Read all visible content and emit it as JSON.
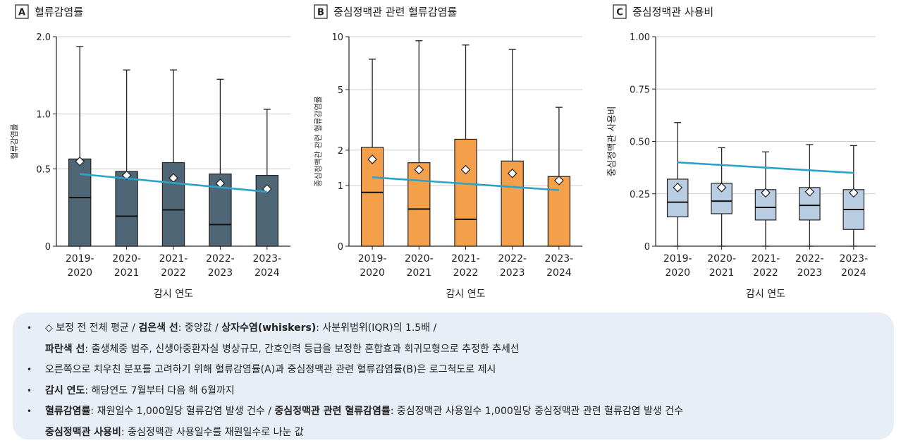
{
  "panels": [
    {
      "letter": "A",
      "title": "혈류감염률",
      "ylabel": "혈류감염률",
      "xlabel": "감시 연도"
    },
    {
      "letter": "B",
      "title": "중심정맥관 관련 혈류감염률",
      "ylabel": "중심정맥관 관련 혈류감염률",
      "xlabel": "감시 연도"
    },
    {
      "letter": "C",
      "title": "중심정맥관 사용비",
      "ylabel": "중심정맥관 사용비",
      "xlabel": "감시 연도"
    }
  ],
  "chart_data": [
    {
      "type": "box",
      "title": "혈류감염률",
      "xlabel": "감시 연도",
      "ylabel": "혈류감염률",
      "scale": "log1p",
      "yticks": [
        "0",
        "0.5",
        "1.0",
        "2.0"
      ],
      "ytick_values": [
        0,
        0.5,
        1.0,
        2.0
      ],
      "ylim": [
        0,
        2.0
      ],
      "categories": [
        [
          "2019-",
          "2020"
        ],
        [
          "2020-",
          "2021"
        ],
        [
          "2021-",
          "2022"
        ],
        [
          "2022-",
          "2023"
        ],
        [
          "2023-",
          "2024"
        ]
      ],
      "box_color": "#4f6676",
      "boxes": [
        {
          "whisker_low": 0,
          "q1": 0,
          "median": 0.29,
          "q3": 0.58,
          "whisker_high": 1.85,
          "mean": 0.56
        },
        {
          "whisker_low": 0,
          "q1": 0,
          "median": 0.17,
          "q3": 0.48,
          "whisker_high": 1.52,
          "mean": 0.45
        },
        {
          "whisker_low": 0,
          "q1": 0,
          "median": 0.21,
          "q3": 0.55,
          "whisker_high": 1.52,
          "mean": 0.43
        },
        {
          "whisker_low": 0,
          "q1": 0,
          "median": 0.12,
          "q3": 0.46,
          "whisker_high": 1.4,
          "mean": 0.39
        },
        {
          "whisker_low": 0,
          "q1": 0,
          "median": 0,
          "q3": 0.45,
          "whisker_high": 1.05,
          "mean": 0.35
        }
      ],
      "trend": [
        0.46,
        0.33
      ],
      "grid": true
    },
    {
      "type": "box",
      "title": "중심정맥관 관련 혈류감염률",
      "xlabel": "감시 연도",
      "ylabel": "중심정맥관 관련 혈류감염률",
      "scale": "log1p",
      "yticks": [
        "0",
        "1",
        "2",
        "5",
        "10"
      ],
      "ytick_values": [
        0,
        1,
        2,
        5,
        10
      ],
      "ylim": [
        0,
        10
      ],
      "categories": [
        [
          "2019-",
          "2020"
        ],
        [
          "2020-",
          "2021"
        ],
        [
          "2021-",
          "2022"
        ],
        [
          "2022-",
          "2023"
        ],
        [
          "2023-",
          "2024"
        ]
      ],
      "box_color": "#f4a04a",
      "boxes": [
        {
          "whisker_low": 0,
          "q1": 0,
          "median": 0.85,
          "q3": 2.1,
          "whisker_high": 7.5,
          "mean": 1.7
        },
        {
          "whisker_low": 0,
          "q1": 0,
          "median": 0.53,
          "q3": 1.6,
          "whisker_high": 9.5,
          "mean": 1.4
        },
        {
          "whisker_low": 0,
          "q1": 0,
          "median": 0.36,
          "q3": 2.4,
          "whisker_high": 9.0,
          "mean": 1.4
        },
        {
          "whisker_low": 0,
          "q1": 0,
          "median": 0,
          "q3": 1.65,
          "whisker_high": 8.5,
          "mean": 1.3
        },
        {
          "whisker_low": 0,
          "q1": 0,
          "median": 0,
          "q3": 1.22,
          "whisker_high": 3.9,
          "mean": 1.12
        }
      ],
      "trend": [
        1.2,
        0.9
      ],
      "grid": true
    },
    {
      "type": "box",
      "title": "중심정맥관 사용비",
      "xlabel": "감시 연도",
      "ylabel": "중심정맥관 사용비",
      "scale": "linear",
      "yticks": [
        "0",
        "0.25",
        "0.50",
        "0.75",
        "1.00"
      ],
      "ytick_values": [
        0,
        0.25,
        0.5,
        0.75,
        1.0
      ],
      "ylim": [
        0,
        1.0
      ],
      "categories": [
        [
          "2019-",
          "2020"
        ],
        [
          "2020-",
          "2021"
        ],
        [
          "2021-",
          "2022"
        ],
        [
          "2022-",
          "2023"
        ],
        [
          "2023-",
          "2024"
        ]
      ],
      "box_color": "#b9cde2",
      "boxes": [
        {
          "whisker_low": 0,
          "q1": 0.14,
          "median": 0.21,
          "q3": 0.32,
          "whisker_high": 0.59,
          "mean": 0.28
        },
        {
          "whisker_low": 0,
          "q1": 0.155,
          "median": 0.215,
          "q3": 0.3,
          "whisker_high": 0.47,
          "mean": 0.28
        },
        {
          "whisker_low": 0,
          "q1": 0.125,
          "median": 0.185,
          "q3": 0.27,
          "whisker_high": 0.45,
          "mean": 0.255
        },
        {
          "whisker_low": 0,
          "q1": 0.125,
          "median": 0.195,
          "q3": 0.28,
          "whisker_high": 0.485,
          "mean": 0.26
        },
        {
          "whisker_low": 0,
          "q1": 0.08,
          "median": 0.175,
          "q3": 0.27,
          "whisker_high": 0.48,
          "mean": 0.255
        }
      ],
      "trend": [
        0.4,
        0.35
      ],
      "grid": true
    }
  ],
  "styles": {
    "trend_color": "#2ba3c8",
    "legend_bg": "#e8eef6",
    "grid_color": "#cccccc"
  },
  "notes": [
    {
      "segments": [
        {
          "text": "◇ 보정 전 전체 평균 / ",
          "bold": false
        },
        {
          "text": "검은색 선",
          "bold": true
        },
        {
          "text": ": 중앙값 / ",
          "bold": false
        },
        {
          "text": "상자수염(whiskers)",
          "bold": true
        },
        {
          "text": ": 사분위범위(IQR)의 1.5배 /",
          "bold": false
        }
      ],
      "bullet": true
    },
    {
      "segments": [
        {
          "text": "파란색 선",
          "bold": true
        },
        {
          "text": ": 출생체중 범주, 신생아중환자실 병상규모, 간호인력 등급을 보정한 혼합효과 회귀모형으로 추정한 추세선",
          "bold": false
        }
      ],
      "bullet": false
    },
    {
      "segments": [
        {
          "text": "오른쪽으로 치우친 분포를 고려하기 위해 혈류감염률(A)과 중심정맥관 관련 혈류감염률(B)은 로그척도로 제시",
          "bold": false
        }
      ],
      "bullet": true
    },
    {
      "segments": [
        {
          "text": "감시 연도",
          "bold": true
        },
        {
          "text": ": 해당연도 7월부터 다음 해 6월까지",
          "bold": false
        }
      ],
      "bullet": true
    },
    {
      "segments": [
        {
          "text": "혈류감염률",
          "bold": true
        },
        {
          "text": ": 재원일수 1,000일당 혈류감염 발생 건수 / ",
          "bold": false
        },
        {
          "text": "중심정맥관 관련 혈류감염률",
          "bold": true
        },
        {
          "text": ": 중심정맥관 사용일수 1,000일당 중심정맥관 관련 혈류감염 발생 건수",
          "bold": false
        }
      ],
      "bullet": true
    },
    {
      "segments": [
        {
          "text": "중심정맥관 사용비",
          "bold": true
        },
        {
          "text": ": 중심정맥관 사용일수를 재원일수로 나눈 값",
          "bold": false
        }
      ],
      "bullet": false
    }
  ]
}
